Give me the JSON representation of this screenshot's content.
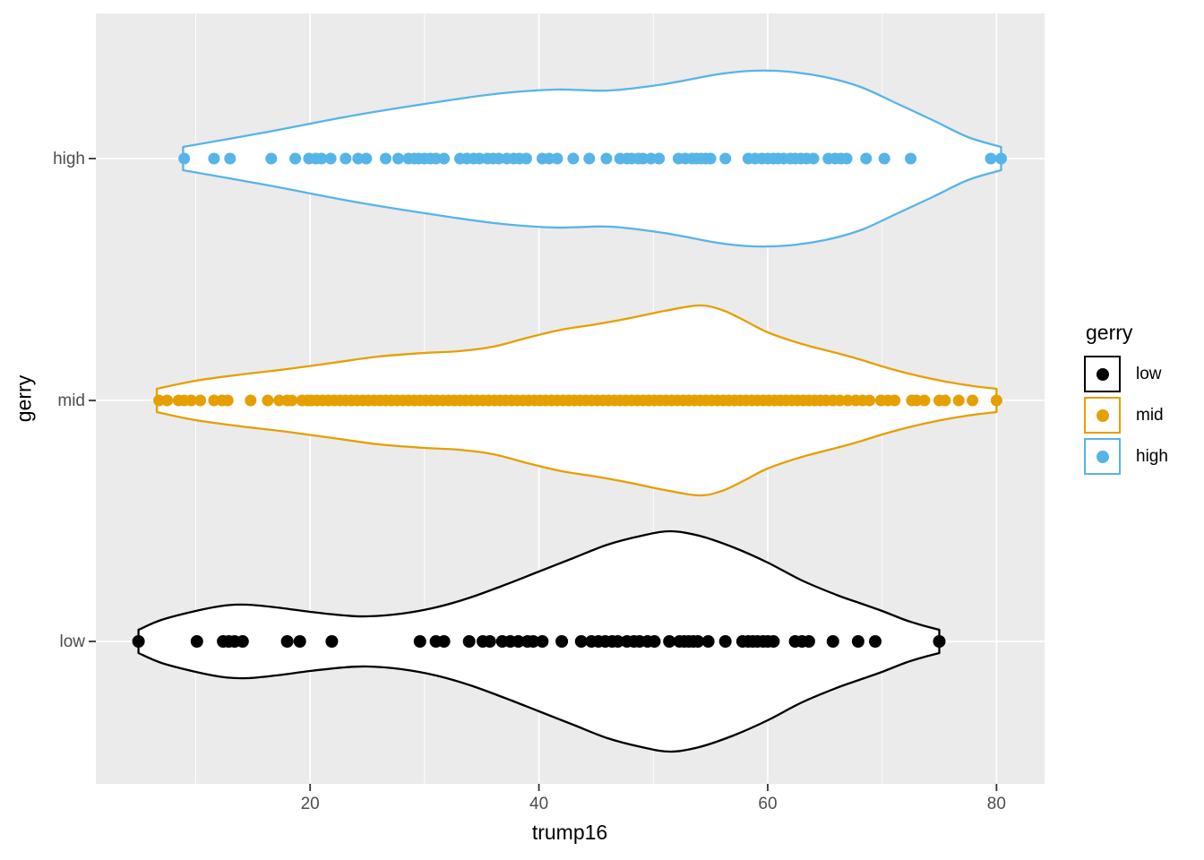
{
  "figure": {
    "background": "#FFFFFF",
    "panel_background": "#EBEBEB",
    "grid_color": "#FFFFFF",
    "tick_mark_color": "#333333",
    "tick_label_color": "#4D4D4D",
    "axis_title_color": "#000000"
  },
  "axes": {
    "x": {
      "title": "trump16",
      "major_ticks": [
        20,
        40,
        60,
        80
      ],
      "minor_ticks": [
        10,
        30,
        50,
        70
      ],
      "domain": [
        1.27,
        84.2
      ]
    },
    "y": {
      "title": "gerry",
      "categories": [
        "high",
        "mid",
        "low"
      ]
    }
  },
  "legend": {
    "title": "gerry",
    "items": [
      {
        "label": "low",
        "color": "#000000"
      },
      {
        "label": "mid",
        "color": "#E69F00"
      },
      {
        "label": "high",
        "color": "#56B4E9"
      }
    ]
  },
  "chart_data": {
    "type": "violin",
    "orientation": "horizontal",
    "x_variable": "trump16",
    "y_variable": "gerry",
    "xlim": [
      1.27,
      84.2
    ],
    "grid": true,
    "legend_position": "right",
    "series": [
      {
        "name": "high",
        "color": "#56B4E9",
        "data_range": [
          8.9,
          80.4
        ],
        "density_profile": [
          [
            8.9,
            13
          ],
          [
            16.4,
            30
          ],
          [
            24.2,
            49
          ],
          [
            32.1,
            65
          ],
          [
            36.8,
            73
          ],
          [
            41.5,
            77
          ],
          [
            46.2,
            76
          ],
          [
            50.9,
            83
          ],
          [
            55.6,
            94
          ],
          [
            58.7,
            98
          ],
          [
            61.8,
            97
          ],
          [
            65,
            91
          ],
          [
            68.1,
            80
          ],
          [
            71.2,
            62
          ],
          [
            74.4,
            43
          ],
          [
            77.5,
            24
          ],
          [
            80.4,
            13
          ]
        ],
        "points": [
          9.0,
          11.6,
          13.0,
          16.6,
          18.7,
          19.9,
          20.5,
          21.0,
          21.8,
          23.1,
          24.2,
          24.9,
          26.6,
          27.7,
          28.6,
          29.1,
          29.5,
          30.0,
          30.5,
          31.0,
          31.7,
          33.1,
          33.7,
          34.3,
          34.8,
          35.5,
          36.0,
          36.5,
          37.2,
          37.8,
          38.3,
          38.9,
          40.3,
          40.9,
          41.6,
          43.0,
          44.4,
          45.9,
          47.1,
          47.7,
          48.1,
          48.7,
          49.1,
          49.8,
          50.5,
          52.2,
          52.8,
          53.4,
          53.8,
          54.2,
          54.6,
          55.0,
          56.3,
          58.3,
          58.9,
          59.5,
          60.0,
          60.5,
          60.9,
          61.4,
          62.0,
          62.4,
          62.9,
          63.4,
          64.0,
          65.3,
          65.9,
          66.4,
          66.9,
          68.6,
          70.2,
          72.5,
          79.5,
          80.4
        ]
      },
      {
        "name": "mid",
        "color": "#E69F00",
        "data_range": [
          6.6,
          80.0
        ],
        "density_profile": [
          [
            6.6,
            13
          ],
          [
            10,
            22
          ],
          [
            14,
            29
          ],
          [
            18,
            35
          ],
          [
            22,
            42
          ],
          [
            26,
            49
          ],
          [
            30,
            53
          ],
          [
            33,
            55
          ],
          [
            36,
            60
          ],
          [
            39,
            70
          ],
          [
            42,
            79
          ],
          [
            45,
            85
          ],
          [
            48,
            92
          ],
          [
            51,
            100
          ],
          [
            54,
            106
          ],
          [
            56,
            101
          ],
          [
            58,
            89
          ],
          [
            60,
            76
          ],
          [
            63,
            63
          ],
          [
            66,
            53
          ],
          [
            68,
            46
          ],
          [
            70,
            38
          ],
          [
            72,
            31
          ],
          [
            74,
            25
          ],
          [
            76,
            20
          ],
          [
            78,
            16
          ],
          [
            80,
            13
          ]
        ],
        "points": [
          6.8,
          7.5,
          8.5,
          9.0,
          9.6,
          10.4,
          11.6,
          12.3,
          12.8,
          14.8,
          16.3,
          17.3,
          18.0,
          18.4,
          19.3,
          19.8,
          20.1,
          20.6,
          21.1,
          21.6,
          22.1,
          22.6,
          23.1,
          23.6,
          24.1,
          24.6,
          25.1,
          25.6,
          26.1,
          26.6,
          27.1,
          27.6,
          28.1,
          28.6,
          29.1,
          29.6,
          30.1,
          30.6,
          31.1,
          31.6,
          32.1,
          32.6,
          33.1,
          33.6,
          34.1,
          34.6,
          35.1,
          35.6,
          36.1,
          36.6,
          37.1,
          37.6,
          38.1,
          38.6,
          39.1,
          39.6,
          40.1,
          40.6,
          41.1,
          41.6,
          42.1,
          42.6,
          43.1,
          43.6,
          44.1,
          44.6,
          45.1,
          45.6,
          46.1,
          46.6,
          47.1,
          47.6,
          48.1,
          48.6,
          49.1,
          49.6,
          50.1,
          50.6,
          51.1,
          51.6,
          52.1,
          52.6,
          53.1,
          53.6,
          54.1,
          54.6,
          55.1,
          55.6,
          56.1,
          56.6,
          57.1,
          57.6,
          58.1,
          58.6,
          59.1,
          59.6,
          60.1,
          60.6,
          61.1,
          61.6,
          62.1,
          62.6,
          63.1,
          63.6,
          64.1,
          64.6,
          65.1,
          65.7,
          66.3,
          67.0,
          67.7,
          68.3,
          68.9,
          69.9,
          70.5,
          71.1,
          72.6,
          73.0,
          73.7,
          75.0,
          75.5,
          76.7,
          77.9,
          80.0
        ]
      },
      {
        "name": "low",
        "color": "#000000",
        "data_range": [
          5.0,
          75.0
        ],
        "density_profile": [
          [
            5,
            13
          ],
          [
            7,
            24
          ],
          [
            10,
            34
          ],
          [
            12.5,
            40
          ],
          [
            14.5,
            41
          ],
          [
            17,
            38
          ],
          [
            20,
            33
          ],
          [
            23,
            29
          ],
          [
            25,
            28
          ],
          [
            28,
            31
          ],
          [
            31,
            38
          ],
          [
            34,
            49
          ],
          [
            37,
            63
          ],
          [
            40,
            78
          ],
          [
            43,
            93
          ],
          [
            46,
            108
          ],
          [
            49,
            118
          ],
          [
            51.5,
            123
          ],
          [
            54,
            118
          ],
          [
            57,
            105
          ],
          [
            60,
            88
          ],
          [
            63,
            68
          ],
          [
            66,
            52
          ],
          [
            68,
            43
          ],
          [
            70,
            34
          ],
          [
            72,
            24
          ],
          [
            73.5,
            18
          ],
          [
            75,
            13
          ]
        ],
        "points": [
          5.0,
          10.1,
          12.4,
          12.9,
          13.4,
          14.1,
          18.0,
          19.1,
          21.9,
          29.6,
          31.0,
          31.7,
          33.9,
          35.1,
          35.7,
          36.8,
          37.5,
          38.2,
          39.0,
          39.5,
          40.3,
          42.0,
          43.7,
          44.6,
          45.2,
          45.8,
          46.4,
          46.9,
          47.7,
          48.3,
          48.8,
          49.5,
          50.1,
          51.4,
          52.3,
          52.7,
          53.1,
          53.5,
          53.9,
          54.8,
          56.3,
          57.8,
          58.3,
          58.7,
          59.1,
          59.6,
          60.0,
          60.5,
          62.4,
          63.0,
          63.6,
          65.7,
          67.9,
          69.4,
          75.0
        ]
      }
    ]
  }
}
